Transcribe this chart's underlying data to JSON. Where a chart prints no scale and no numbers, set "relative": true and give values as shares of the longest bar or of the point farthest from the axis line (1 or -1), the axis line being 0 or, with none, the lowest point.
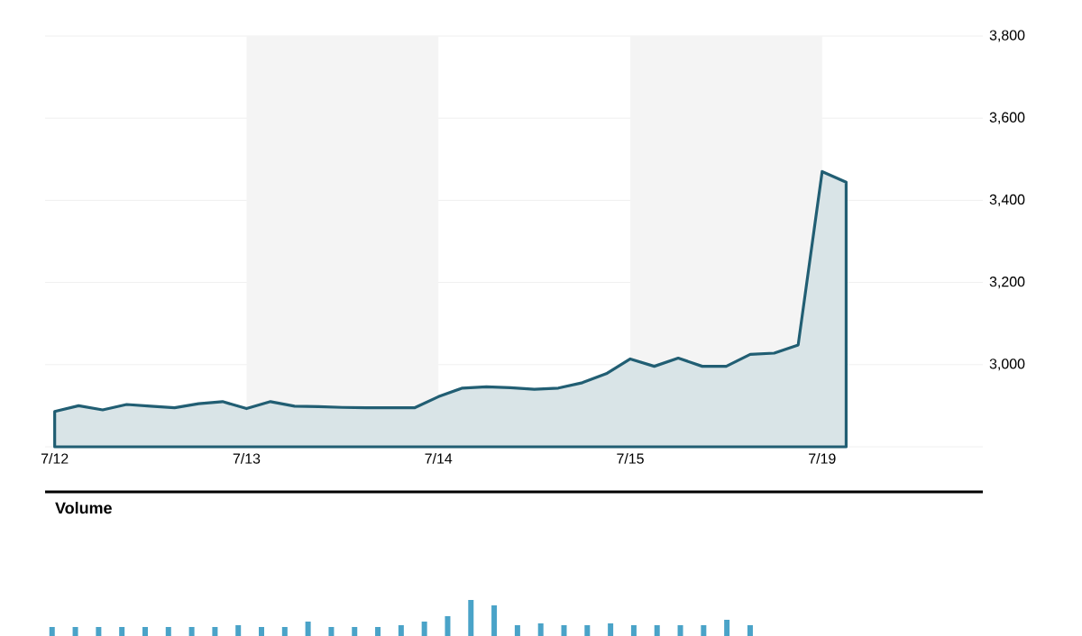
{
  "chart_data": [
    {
      "type": "area",
      "categories": [
        "7/12",
        null,
        null,
        null,
        null,
        null,
        null,
        null,
        "7/13",
        null,
        null,
        null,
        null,
        null,
        null,
        null,
        "7/14",
        null,
        null,
        null,
        null,
        null,
        null,
        null,
        "7/15",
        null,
        null,
        null,
        null,
        null,
        null,
        null,
        "7/19",
        null
      ],
      "series": [
        {
          "color": "#215e73",
          "values": [
            2886,
            2900,
            2890,
            2903,
            2899,
            2895,
            2905,
            2910,
            2893,
            2910,
            2899,
            2898,
            2896,
            2895,
            2895,
            2895,
            2922,
            2943,
            2946,
            2944,
            2940,
            2943,
            2956,
            2978,
            3014,
            2996,
            3016,
            2996,
            2996,
            3025,
            3028,
            3048,
            3470,
            3444
          ]
        }
      ],
      "ylim": [
        2800,
        3800
      ],
      "yticks": [
        {
          "value": 2800,
          "label": null
        },
        {
          "value": 3000,
          "label": "3,000"
        },
        {
          "value": 3200,
          "label": "3,200"
        },
        {
          "value": 3400,
          "label": "3,400"
        },
        {
          "value": 3600,
          "label": "3,600"
        },
        {
          "value": 3800,
          "label": "3,800"
        }
      ],
      "grid": "y",
      "bands": [
        {
          "axis": "x",
          "from": "7/13",
          "to": "7/14",
          "color": "#f4f4f4"
        },
        {
          "axis": "x",
          "from": "7/15",
          "to": "7/19",
          "color": "#f4f4f4"
        }
      ]
    },
    {
      "type": "bar",
      "title": "Volume",
      "relative": true,
      "categories": [
        null,
        null,
        null,
        null,
        null,
        null,
        null,
        null,
        null,
        null,
        null,
        null,
        null,
        null,
        null,
        null,
        null,
        null,
        null,
        null,
        null,
        null,
        null,
        null,
        null,
        null,
        null,
        null,
        null,
        null,
        null
      ],
      "values": [
        0.25,
        0.25,
        0.25,
        0.25,
        0.25,
        0.25,
        0.25,
        0.25,
        0.3,
        0.25,
        0.25,
        0.4,
        0.25,
        0.25,
        0.25,
        0.3,
        0.4,
        0.55,
        1,
        0.85,
        0.3,
        0.35,
        0.3,
        0.3,
        0.35,
        0.3,
        0.3,
        0.3,
        0.3,
        0.45,
        0.3
      ],
      "color": "#4aa3c8"
    }
  ]
}
